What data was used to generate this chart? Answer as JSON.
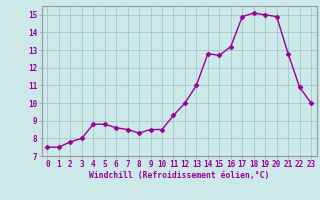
{
  "x": [
    0,
    1,
    2,
    3,
    4,
    5,
    6,
    7,
    8,
    9,
    10,
    11,
    12,
    13,
    14,
    15,
    16,
    17,
    18,
    19,
    20,
    21,
    22,
    23
  ],
  "y": [
    7.5,
    7.5,
    7.8,
    8.0,
    8.8,
    8.8,
    8.6,
    8.5,
    8.3,
    8.5,
    8.5,
    9.3,
    10.0,
    11.0,
    12.8,
    12.7,
    13.2,
    14.9,
    15.1,
    15.0,
    14.9,
    12.8,
    10.9,
    10.0
  ],
  "line_color": "#990099",
  "marker": "D",
  "marker_size": 2.5,
  "bg_color": "#cce8e8",
  "grid_color": "#aacccc",
  "xlabel": "Windchill (Refroidissement éolien,°C)",
  "xlabel_color": "#990099",
  "tick_color": "#990099",
  "spine_color": "#999999",
  "ylim": [
    7,
    15.5
  ],
  "yticks": [
    7,
    8,
    9,
    10,
    11,
    12,
    13,
    14,
    15
  ],
  "xticks": [
    0,
    1,
    2,
    3,
    4,
    5,
    6,
    7,
    8,
    9,
    10,
    11,
    12,
    13,
    14,
    15,
    16,
    17,
    18,
    19,
    20,
    21,
    22,
    23
  ],
  "tick_fontsize": 5.5,
  "xlabel_fontsize": 5.8,
  "line_width": 1.0
}
